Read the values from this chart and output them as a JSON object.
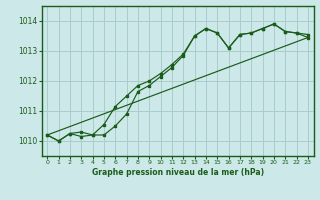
{
  "title": "Graphe pression niveau de la mer (hPa)",
  "bg_color": "#cce8e8",
  "grid_color": "#aacccc",
  "line_color": "#1a5c1a",
  "border_color": "#1a5c1a",
  "xlim": [
    -0.5,
    23.5
  ],
  "ylim": [
    1009.5,
    1014.5
  ],
  "yticks": [
    1010,
    1011,
    1012,
    1013,
    1014
  ],
  "xticks": [
    0,
    1,
    2,
    3,
    4,
    5,
    6,
    7,
    8,
    9,
    10,
    11,
    12,
    13,
    14,
    15,
    16,
    17,
    18,
    19,
    20,
    21,
    22,
    23
  ],
  "line1_x": [
    0,
    1,
    2,
    3,
    4,
    5,
    6,
    7,
    8,
    9,
    10,
    11,
    12,
    13,
    14,
    15,
    16,
    17,
    18,
    19,
    20,
    21,
    22,
    23
  ],
  "line1_y": [
    1010.2,
    1010.0,
    1010.25,
    1010.3,
    1010.2,
    1010.2,
    1010.5,
    1010.9,
    1011.65,
    1011.85,
    1012.15,
    1012.45,
    1012.85,
    1013.5,
    1013.75,
    1013.6,
    1013.1,
    1013.55,
    1013.6,
    1013.75,
    1013.9,
    1013.65,
    1013.6,
    1013.55
  ],
  "line2_x": [
    0,
    1,
    2,
    3,
    4,
    5,
    6,
    7,
    8,
    9,
    10,
    11,
    12,
    13,
    14,
    15,
    16,
    17,
    18,
    19,
    20,
    21,
    22,
    23
  ],
  "line2_y": [
    1010.2,
    1010.0,
    1010.25,
    1010.15,
    1010.2,
    1010.55,
    1011.15,
    1011.5,
    1011.85,
    1012.0,
    1012.25,
    1012.55,
    1012.9,
    1013.5,
    1013.75,
    1013.6,
    1013.1,
    1013.55,
    1013.6,
    1013.75,
    1013.9,
    1013.65,
    1013.6,
    1013.45
  ],
  "line3_x": [
    0,
    23
  ],
  "line3_y": [
    1010.2,
    1013.45
  ]
}
